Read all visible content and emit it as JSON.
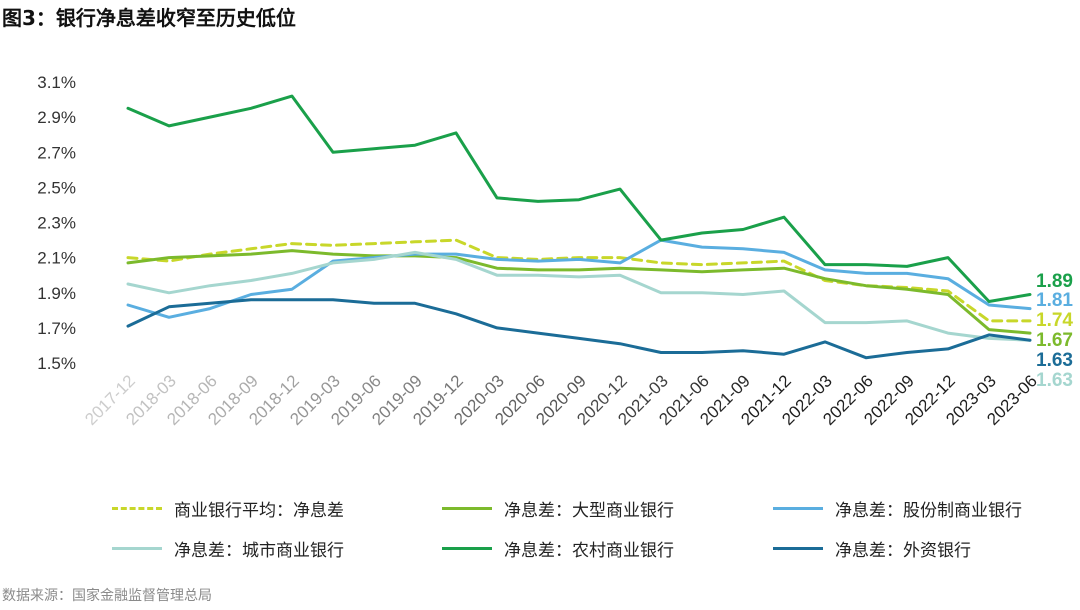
{
  "header": {
    "title": "图3：银行净息差收窄至历史低位"
  },
  "footer": {
    "source": "数据来源：国家金融监督管理总局"
  },
  "chart_data": {
    "type": "line",
    "title": "图3：银行净息差收窄至历史低位",
    "xlabel": "",
    "ylabel": "",
    "ylim": [
      1.5,
      3.1
    ],
    "yticks": [
      "1.5%",
      "1.7%",
      "1.9%",
      "2.1%",
      "2.3%",
      "2.5%",
      "2.7%",
      "2.9%",
      "3.1%"
    ],
    "ytick_values": [
      1.5,
      1.7,
      1.9,
      2.1,
      2.3,
      2.5,
      2.7,
      2.9,
      3.1
    ],
    "grid": false,
    "legend_position": "bottom",
    "categories": [
      "2017-12",
      "2018-03",
      "2018-06",
      "2018-09",
      "2018-12",
      "2019-03",
      "2019-06",
      "2019-09",
      "2019-12",
      "2020-03",
      "2020-06",
      "2020-09",
      "2020-12",
      "2021-03",
      "2021-06",
      "2021-09",
      "2021-12",
      "2022-03",
      "2022-06",
      "2022-09",
      "2022-12",
      "2023-03",
      "2023-06"
    ],
    "series": [
      {
        "name": "商业银行平均：净息差",
        "color": "#c8d72a",
        "dash": true,
        "values": [
          2.1,
          2.08,
          2.12,
          2.15,
          2.18,
          2.17,
          2.18,
          2.19,
          2.2,
          2.1,
          2.09,
          2.1,
          2.1,
          2.07,
          2.06,
          2.07,
          2.08,
          1.97,
          1.94,
          1.93,
          1.91,
          1.74,
          1.74
        ],
        "end_label": "1.74"
      },
      {
        "name": "净息差：大型商业银行",
        "color": "#7cba2c",
        "dash": false,
        "values": [
          2.07,
          2.1,
          2.11,
          2.12,
          2.14,
          2.12,
          2.11,
          2.11,
          2.1,
          2.04,
          2.03,
          2.03,
          2.04,
          2.03,
          2.02,
          2.03,
          2.04,
          1.98,
          1.94,
          1.92,
          1.89,
          1.69,
          1.67
        ],
        "end_label": "1.67"
      },
      {
        "name": "净息差：股份制商业银行",
        "color": "#5aaee0",
        "dash": false,
        "values": [
          1.83,
          1.76,
          1.81,
          1.89,
          1.92,
          2.08,
          2.1,
          2.12,
          2.12,
          2.09,
          2.08,
          2.09,
          2.07,
          2.2,
          2.16,
          2.15,
          2.13,
          2.03,
          2.01,
          2.01,
          1.98,
          1.83,
          1.81
        ],
        "end_label": "1.81"
      },
      {
        "name": "净息差：城市商业银行",
        "color": "#a5d6cf",
        "dash": false,
        "values": [
          1.95,
          1.9,
          1.94,
          1.97,
          2.01,
          2.07,
          2.09,
          2.13,
          2.09,
          2.0,
          2.0,
          1.99,
          2.0,
          1.9,
          1.9,
          1.89,
          1.91,
          1.73,
          1.73,
          1.74,
          1.67,
          1.64,
          1.63
        ],
        "end_label": "1.63"
      },
      {
        "name": "净息差：农村商业银行",
        "color": "#1aa04a",
        "dash": false,
        "values": [
          2.95,
          2.85,
          2.9,
          2.95,
          3.02,
          2.7,
          2.72,
          2.74,
          2.81,
          2.44,
          2.42,
          2.43,
          2.49,
          2.2,
          2.24,
          2.26,
          2.33,
          2.06,
          2.06,
          2.05,
          2.1,
          1.85,
          1.89
        ],
        "end_label": "1.89"
      },
      {
        "name": "净息差：外资银行",
        "color": "#1b6c97",
        "dash": false,
        "values": [
          1.71,
          1.82,
          1.84,
          1.86,
          1.86,
          1.86,
          1.84,
          1.84,
          1.78,
          1.7,
          1.67,
          1.64,
          1.61,
          1.56,
          1.56,
          1.57,
          1.55,
          1.62,
          1.53,
          1.56,
          1.58,
          1.66,
          1.63
        ],
        "end_label": "1.63"
      }
    ]
  }
}
